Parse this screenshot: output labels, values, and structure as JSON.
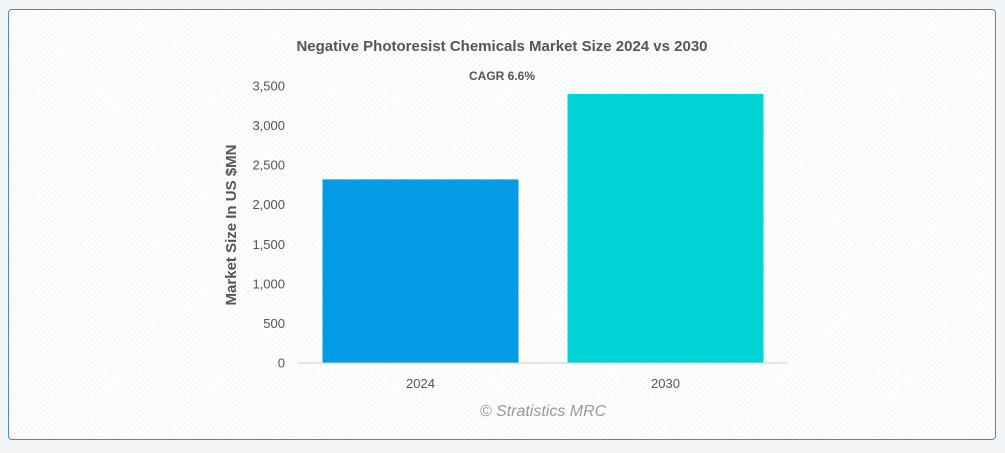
{
  "chart_data": {
    "type": "bar",
    "title": "Negative Photoresist Chemicals Market Size 2024 vs 2030",
    "annotation": "CAGR 6.6%",
    "xlabel": "",
    "ylabel": "Market Size In US $MN",
    "categories": [
      "2024",
      "2030"
    ],
    "values": [
      2320,
      3400
    ],
    "colors": [
      "#039be5",
      "#00d4d4"
    ],
    "ylim": [
      0,
      3500
    ],
    "yticks": [
      0,
      500,
      1000,
      1500,
      2000,
      2500,
      3000,
      3500
    ],
    "ytick_labels": [
      "0",
      "500",
      "1,000",
      "1,500",
      "2,000",
      "2,500",
      "3,000",
      "3,500"
    ],
    "grid": false,
    "legend": "none"
  },
  "watermark": "© Stratistics MRC"
}
